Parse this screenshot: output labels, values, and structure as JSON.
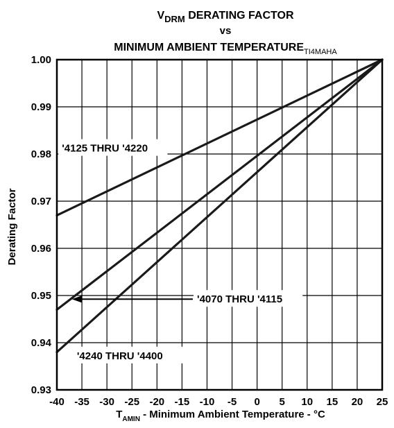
{
  "chart_data": {
    "type": "line",
    "title_line1_main": "V",
    "title_line1_sub": "DRM",
    "title_line1_rest": " DERATING FACTOR",
    "title_line2": "vs",
    "title_line3": "MINIMUM AMBIENT TEMPERATURE",
    "figure_id": "TI4MAHA",
    "xlabel_main": "T",
    "xlabel_sub": "AMIN",
    "xlabel_rest": " - Minimum Ambient Temperature - °C",
    "ylabel": "Derating Factor",
    "xlim": [
      -40,
      25
    ],
    "ylim": [
      0.93,
      1.0
    ],
    "x_ticks": [
      -40,
      -35,
      -30,
      -25,
      -20,
      -15,
      -10,
      -5,
      0,
      5,
      10,
      15,
      20,
      25
    ],
    "y_ticks": [
      "0.93",
      "0.94",
      "0.95",
      "0.96",
      "0.97",
      "0.98",
      "0.99",
      "1.00"
    ],
    "grid": true,
    "series": [
      {
        "name": "'4125 THRU '4220",
        "x": [
          -40,
          25
        ],
        "y": [
          0.967,
          1.0
        ]
      },
      {
        "name": "'4070 THRU '4115",
        "x": [
          -40,
          25
        ],
        "y": [
          0.947,
          1.0
        ]
      },
      {
        "name": "'4240 THRU '4400",
        "x": [
          -40,
          25
        ],
        "y": [
          0.938,
          1.0
        ]
      }
    ],
    "annotations": [
      {
        "text": "'4125 THRU '4220",
        "x": -39,
        "y": 0.9805
      },
      {
        "text": "'4070 THRU '4115",
        "x": -12,
        "y": 0.9485,
        "arrow_to_x": -37
      },
      {
        "text": "'4240 THRU '4400",
        "x": -36,
        "y": 0.9365
      }
    ]
  }
}
